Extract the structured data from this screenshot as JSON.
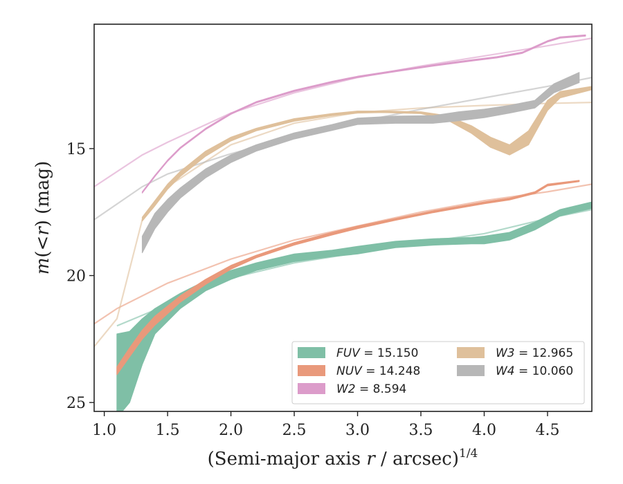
{
  "chart_data": {
    "type": "line",
    "title": "",
    "xlabel_main": "(Semi-major axis ",
    "xlabel_var": "r",
    "xlabel_rest": " / arcsec)",
    "xlabel_exp": "1/4",
    "ylabel_italic_m": "m",
    "ylabel_inner": "(<",
    "ylabel_italic_r": "r",
    "ylabel_rest": ") (mag)",
    "xlim": [
      0.92,
      4.85
    ],
    "ylim": [
      25.35,
      10.1
    ],
    "y_inverted": true,
    "x_ticks": [
      "1.0",
      "1.5",
      "2.0",
      "2.5",
      "3.0",
      "3.5",
      "4.0",
      "4.5"
    ],
    "y_ticks": [
      "15",
      "20",
      "25"
    ],
    "grid": false,
    "legend_position": "lower-right",
    "legend_columns": 2,
    "series": [
      {
        "name": "FUV",
        "legend_label": "FUV = 15.150",
        "value": "15.150",
        "color": "#7fbfa6",
        "x": [
          1.1,
          1.2,
          1.3,
          1.4,
          1.6,
          1.8,
          2.0,
          2.2,
          2.5,
          2.8,
          3.0,
          3.3,
          3.6,
          3.9,
          4.0,
          4.2,
          4.4,
          4.6,
          4.85
        ],
        "y_upper": [
          22.3,
          22.2,
          21.7,
          21.3,
          20.7,
          20.2,
          19.8,
          19.5,
          19.15,
          19.0,
          18.85,
          18.65,
          18.55,
          18.5,
          18.45,
          18.3,
          17.9,
          17.4,
          17.1
        ],
        "y_lower": [
          25.6,
          25.0,
          23.5,
          22.3,
          21.3,
          20.6,
          20.15,
          19.8,
          19.45,
          19.25,
          19.15,
          18.9,
          18.8,
          18.75,
          18.75,
          18.6,
          18.2,
          17.65,
          17.35
        ],
        "fit_x": [
          1.1,
          1.5,
          2.0,
          2.5,
          3.0,
          3.5,
          4.0,
          4.5,
          4.85
        ],
        "fit_y": [
          21.98,
          21.15,
          20.1,
          19.5,
          19.1,
          18.7,
          18.35,
          17.75,
          17.4
        ]
      },
      {
        "name": "NUV",
        "legend_label": "NUV = 14.248",
        "value": "14.248",
        "color": "#e9997b",
        "x": [
          1.1,
          1.2,
          1.3,
          1.4,
          1.5,
          1.6,
          1.8,
          2.0,
          2.2,
          2.5,
          2.8,
          3.0,
          3.3,
          3.6,
          4.0,
          4.2,
          4.4,
          4.5,
          4.75
        ],
        "y_upper": [
          23.6,
          22.85,
          22.15,
          21.6,
          21.2,
          20.8,
          20.15,
          19.6,
          19.2,
          18.7,
          18.3,
          18.05,
          17.75,
          17.45,
          17.1,
          16.95,
          16.7,
          16.4,
          16.25
        ],
        "y_lower": [
          23.9,
          23.2,
          22.5,
          21.95,
          21.5,
          21.05,
          20.35,
          19.75,
          19.3,
          18.8,
          18.4,
          18.15,
          17.82,
          17.52,
          17.17,
          17.02,
          16.77,
          16.47,
          16.3
        ],
        "fit_x": [
          0.92,
          1.1,
          1.5,
          2.0,
          2.5,
          3.0,
          3.5,
          4.0,
          4.5,
          4.85
        ],
        "fit_y": [
          21.9,
          21.3,
          20.3,
          19.35,
          18.6,
          18.05,
          17.5,
          17.05,
          16.7,
          16.4
        ]
      },
      {
        "name": "W2",
        "legend_label": "W2 = 8.594",
        "value": "8.594",
        "color": "#dc9cca",
        "x": [
          1.3,
          1.4,
          1.5,
          1.6,
          1.8,
          2.0,
          2.2,
          2.5,
          2.8,
          3.0,
          3.3,
          3.6,
          3.9,
          4.1,
          4.3,
          4.5,
          4.6,
          4.8
        ],
        "y_upper": [
          16.7,
          16.05,
          15.45,
          14.95,
          14.2,
          13.6,
          13.15,
          12.7,
          12.35,
          12.15,
          11.92,
          11.7,
          11.5,
          11.38,
          11.2,
          10.75,
          10.6,
          10.52
        ],
        "y_lower": [
          16.75,
          16.1,
          15.5,
          15.0,
          14.25,
          13.65,
          13.2,
          12.75,
          12.4,
          12.2,
          11.97,
          11.75,
          11.55,
          11.43,
          11.25,
          10.8,
          10.65,
          10.57
        ],
        "fit_x": [
          0.92,
          1.3,
          1.5,
          2.0,
          2.5,
          3.0,
          3.5,
          4.0,
          4.5,
          4.85
        ],
        "fit_y": [
          16.5,
          15.25,
          14.75,
          13.6,
          12.8,
          12.2,
          11.75,
          11.35,
          10.95,
          10.65
        ]
      },
      {
        "name": "W3",
        "legend_label": "W3 = 12.965",
        "value": "12.965",
        "color": "#dfc09b",
        "x": [
          1.3,
          1.4,
          1.5,
          1.6,
          1.8,
          2.0,
          2.2,
          2.5,
          2.8,
          3.0,
          3.2,
          3.5,
          3.7,
          3.9,
          4.05,
          4.2,
          4.35,
          4.5,
          4.6,
          4.85
        ],
        "y_upper": [
          17.7,
          17.05,
          16.4,
          15.9,
          15.1,
          14.55,
          14.2,
          13.82,
          13.62,
          13.52,
          13.52,
          13.55,
          13.7,
          14.1,
          14.55,
          14.85,
          14.3,
          13.1,
          12.75,
          12.55
        ],
        "y_lower": [
          17.85,
          17.25,
          16.6,
          16.1,
          15.3,
          14.7,
          14.3,
          13.92,
          13.7,
          13.6,
          13.58,
          13.62,
          13.85,
          14.4,
          14.95,
          15.25,
          14.85,
          13.5,
          13.0,
          12.68
        ],
        "fit_x": [
          0.92,
          1.1,
          1.3,
          1.5,
          2.0,
          2.5,
          3.0,
          3.5,
          4.0,
          4.5,
          4.85
        ],
        "fit_y": [
          22.8,
          21.7,
          17.8,
          16.5,
          14.85,
          14.0,
          13.58,
          13.4,
          13.3,
          13.22,
          13.18
        ]
      },
      {
        "name": "W4",
        "legend_label": "W4 = 10.060",
        "value": "10.060",
        "color": "#b7b7b7",
        "x": [
          1.3,
          1.4,
          1.5,
          1.6,
          1.8,
          2.0,
          2.2,
          2.5,
          2.8,
          3.0,
          3.3,
          3.6,
          3.8,
          4.0,
          4.2,
          4.4,
          4.55,
          4.75
        ],
        "y_upper": [
          18.45,
          17.55,
          17.0,
          16.55,
          15.8,
          15.25,
          14.85,
          14.38,
          14.05,
          13.8,
          13.72,
          13.7,
          13.55,
          13.45,
          13.3,
          13.1,
          12.45,
          12.0
        ],
        "y_lower": [
          19.1,
          18.15,
          17.5,
          16.95,
          16.15,
          15.55,
          15.1,
          14.62,
          14.28,
          14.05,
          14.0,
          14.0,
          13.9,
          13.78,
          13.6,
          13.4,
          12.8,
          12.4
        ],
        "fit_x": [
          0.92,
          1.3,
          1.5,
          2.0,
          2.5,
          3.0,
          3.5,
          4.0,
          4.5,
          4.85
        ],
        "fit_y": [
          17.8,
          16.5,
          16.0,
          15.2,
          14.55,
          13.95,
          13.45,
          13.0,
          12.55,
          12.2
        ]
      }
    ]
  }
}
